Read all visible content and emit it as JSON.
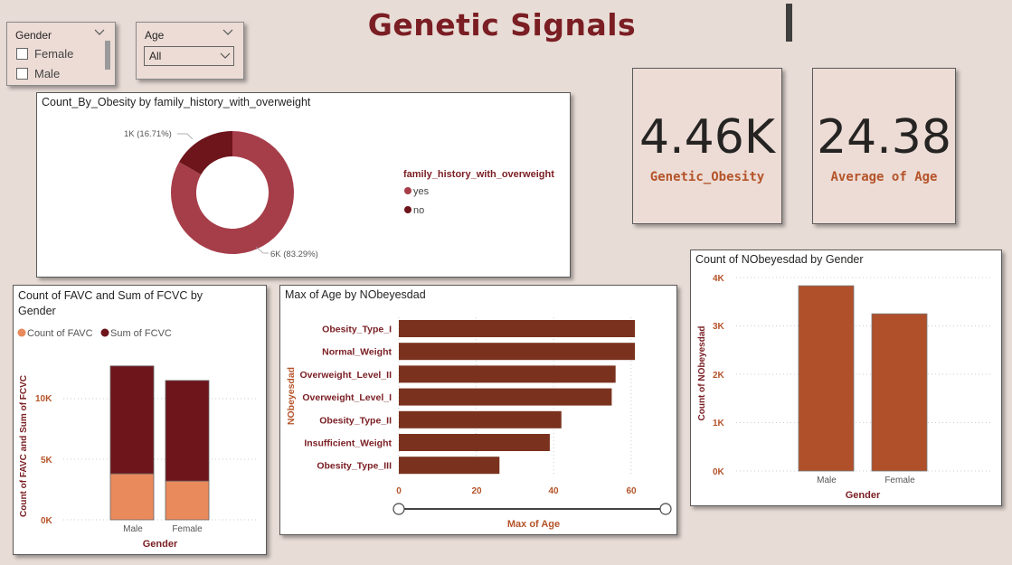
{
  "page_title": "Genetic Signals",
  "colors": {
    "background": "#e8dcd6",
    "title": "#7a1e23",
    "dark_red": "#6e141b",
    "mid_red": "#a63e4a",
    "orange": "#e88a5c",
    "brown": "#7a321f",
    "rust": "#b0502a",
    "kpi_label": "#b5542a",
    "axis_label": "#b5542a"
  },
  "gender_slicer": {
    "header": "Gender",
    "options": [
      {
        "label": "Female",
        "checked": false
      },
      {
        "label": "Male",
        "checked": false
      }
    ]
  },
  "age_slicer": {
    "header": "Age",
    "selected": "All"
  },
  "kpis": [
    {
      "value": "4.46K",
      "label": "Genetic_Obesity"
    },
    {
      "value": "24.38",
      "label": "Average of Age"
    }
  ],
  "donut_chart": {
    "title": "Count_By_Obesity by family_history_with_overweight",
    "legend_title": "family_history_with_overweight",
    "slices": [
      {
        "label": "yes",
        "value": 83.29,
        "data_label": "6K (83.29%)",
        "color": "#a63e4a"
      },
      {
        "label": "no",
        "value": 16.71,
        "data_label": "1K (16.71%)",
        "color": "#6e141b"
      }
    ]
  },
  "stacked_chart": {
    "title_line1": "Count of FAVC and Sum of FCVC by",
    "title_line2": "Gender",
    "legend": [
      {
        "label": "Count of FAVC",
        "color": "#e88a5c"
      },
      {
        "label": "Sum of FCVC",
        "color": "#6e141b"
      }
    ],
    "ylabel": "Count of FAVC and Sum of FCVC",
    "xlabel": "Gender",
    "yticks": [
      "0K",
      "5K",
      "10K"
    ]
  },
  "hbar_chart": {
    "title": "Max of Age by NObeyesdad",
    "ylabel": "NObeyesdad",
    "xlabel": "Max of Age",
    "xticks": [
      "0",
      "20",
      "40",
      "60"
    ]
  },
  "gender_bar_chart": {
    "title": "Count of NObeyesdad by Gender",
    "ylabel": "Count of NObeyesdad",
    "xlabel": "Gender",
    "yticks": [
      "0K",
      "1K",
      "2K",
      "3K",
      "4K"
    ]
  },
  "chart_data": [
    {
      "type": "pie",
      "title": "Count_By_Obesity by family_history_with_overweight",
      "categories": [
        "yes",
        "no"
      ],
      "values": [
        83.29,
        16.71
      ],
      "legend": "right"
    },
    {
      "type": "bar",
      "title": "Count of FAVC and Sum of FCVC by Gender",
      "categories": [
        "Male",
        "Female"
      ],
      "series": [
        {
          "name": "Count of FAVC",
          "values": [
            3800,
            3200
          ]
        },
        {
          "name": "Sum of FCVC",
          "values": [
            8900,
            8300
          ]
        }
      ],
      "xlabel": "Gender",
      "ylabel": "Count of FAVC and Sum of FCVC",
      "ylim": [
        0,
        13000
      ],
      "stacked": true,
      "legend": "top-left",
      "grid": true
    },
    {
      "type": "bar",
      "orientation": "horizontal",
      "title": "Max of Age by NObeyesdad",
      "categories": [
        "Obesity_Type_I",
        "Normal_Weight",
        "Overweight_Level_II",
        "Overweight_Level_I",
        "Obesity_Type_II",
        "Insufficient_Weight",
        "Obesity_Type_III"
      ],
      "values": [
        61,
        61,
        56,
        55,
        42,
        39,
        26
      ],
      "xlabel": "Max of Age",
      "ylabel": "NObeyesdad",
      "xlim": [
        0,
        62
      ],
      "grid": true
    },
    {
      "type": "bar",
      "title": "Count of NObeyesdad by Gender",
      "categories": [
        "Male",
        "Female"
      ],
      "values": [
        3830,
        3250
      ],
      "xlabel": "Gender",
      "ylabel": "Count of NObeyesdad",
      "ylim": [
        0,
        4000
      ],
      "grid": true
    }
  ]
}
